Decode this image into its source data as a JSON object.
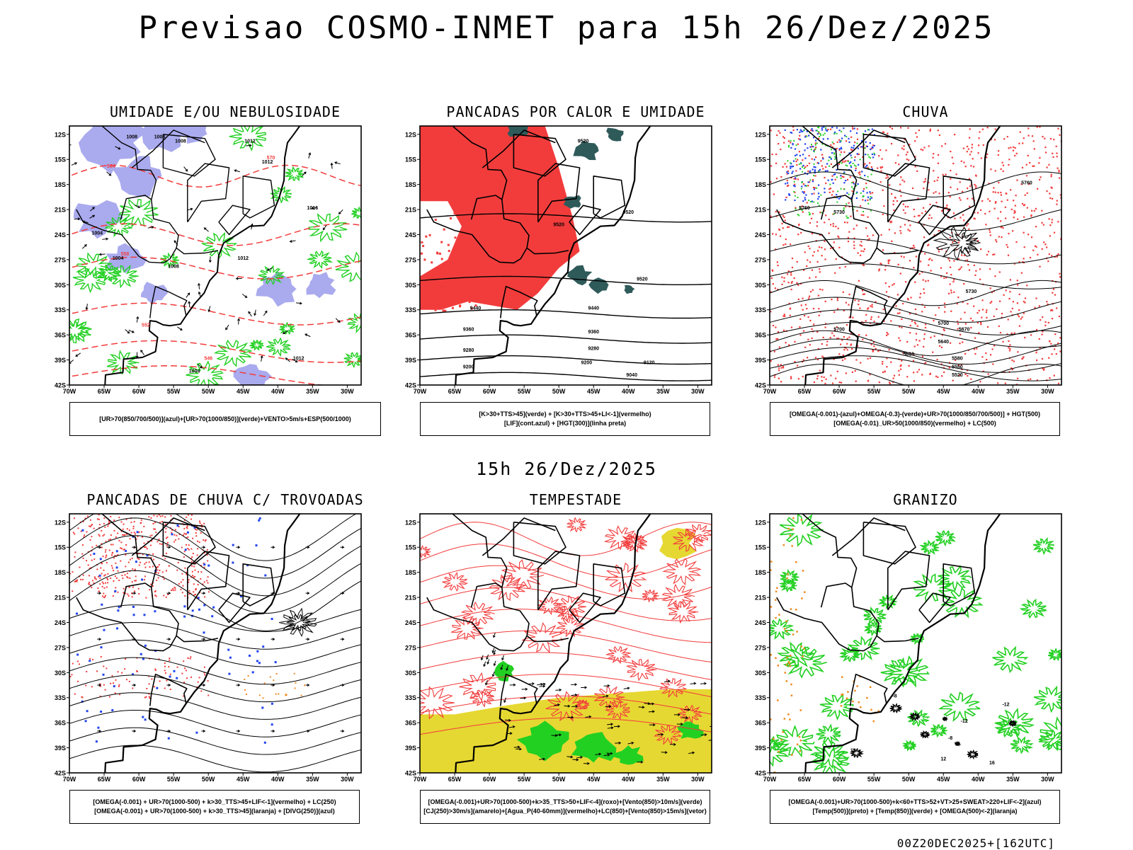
{
  "title": "Previsao COSMO-INMET  para 15h 26/Dez/2025",
  "mid_title": "15h 26/Dez/2025",
  "footer": "00Z20DEC2025+[162UTC]",
  "axes": {
    "lat_labels": [
      "12S",
      "15S",
      "18S",
      "21S",
      "24S",
      "27S",
      "30S",
      "33S",
      "36S",
      "39S",
      "42S"
    ],
    "lon_labels": [
      "70W",
      "65W",
      "60W",
      "55W",
      "50W",
      "45W",
      "40W",
      "35W",
      "30W"
    ]
  },
  "colors": {
    "red": "#f23c3c",
    "green": "#22d022",
    "lavender": "#aaaaee",
    "teal": "#2f5a5a",
    "yellow": "#e6d832",
    "blue": "#2244ee",
    "orange": "#f08a20"
  },
  "panels": [
    {
      "title": "UMIDADE E/OU NEBULOSIDADE",
      "legend": [
        "[UR>70(850/700/500)](azul)+[UR>70(1000/850)](verde)+VENTO>5m/s+ESP(500/1000)"
      ],
      "contour_labels": [
        "1008",
        "1008",
        "1008",
        "1012",
        "1012",
        "1016",
        "1004",
        "1004",
        "1008",
        "1012",
        "1012",
        "1004",
        "570",
        "564",
        "558",
        "552",
        "546"
      ]
    },
    {
      "title": "PANCADAS POR CALOR E UMIDADE",
      "legend": [
        "[K>30+TTS>45](verde) + [K>30+TTS>45+LI<-1](vermelho)",
        "[LIF](cont.azul) + [HGT(300)](linha preta)"
      ],
      "contour_labels": [
        "9520",
        "9520",
        "9520",
        "9520",
        "9440",
        "9440",
        "9360",
        "9360",
        "9280",
        "9280",
        "9200",
        "9200",
        "9120",
        "9040"
      ]
    },
    {
      "title": "CHUVA",
      "legend": [
        "[OMEGA(-0.001)-(azul)+OMEGA(-0.3)-(verde)+UR>70(1000/850/700/500)] + HGT(500)",
        "[OMEGA(-0.01)_UR>50(1000/850)(vermelho) + LC(500)"
      ],
      "contour_labels": [
        "5760",
        "5760",
        "5730",
        "5730",
        "5700",
        "5700",
        "5670",
        "5640",
        "5610",
        "5580",
        "5550",
        "5520"
      ]
    },
    {
      "title": "PANCADAS DE CHUVA C/ TROVOADAS",
      "legend": [
        "[OMEGA(-0.001) + UR>70(1000-500) + k>30_TTS>45+LIF<-1](vermelho) + LC(250)",
        "[OMEGA(-0.001) + UR>70(1000-500) + k>30_TTS>45](laranja) + [DIVG(250)](azul)"
      ],
      "contour_labels": []
    },
    {
      "title": "TEMPESTADE",
      "legend": [
        "[OMEGA(-0.001)+UR>70(1000-500)+k>35_TTS>50+LIF<-4](roxo)+[Vento(850)>10m/s](verde)",
        "[CJ(250)>30m/s](amarelo)+[Agua_P(40-60mm)](vermelho)+LC(850)+[Vento(850)>15m/s](vetor)"
      ],
      "contour_labels": []
    },
    {
      "title": "GRANIZO",
      "legend": [
        "[OMEGA(-0.001)+UR>70(1000-500)+k<60+TTS>52+VT>25+SWEAT>220+LIF<-2](azul)",
        "[Temp(500)](preto) + [Temp(850)](verde) + [OMEGA(500)<-2](laranja)"
      ],
      "contour_labels": [
        "-12",
        "-12",
        "-8",
        "-8",
        "12",
        "12",
        "16"
      ]
    }
  ]
}
